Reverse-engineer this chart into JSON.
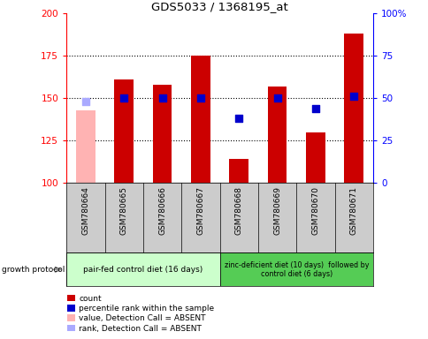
{
  "title": "GDS5033 / 1368195_at",
  "samples": [
    "GSM780664",
    "GSM780665",
    "GSM780666",
    "GSM780667",
    "GSM780668",
    "GSM780669",
    "GSM780670",
    "GSM780671"
  ],
  "count_values": [
    143,
    161,
    158,
    175,
    114,
    157,
    130,
    188
  ],
  "count_absent": [
    true,
    false,
    false,
    false,
    false,
    false,
    false,
    false
  ],
  "percentile_values": [
    48,
    50,
    50,
    50,
    38,
    50,
    44,
    51
  ],
  "percentile_absent": [
    true,
    false,
    false,
    false,
    false,
    false,
    false,
    false
  ],
  "ylim_left": [
    100,
    200
  ],
  "ylim_right": [
    0,
    100
  ],
  "yticks_left": [
    100,
    125,
    150,
    175,
    200
  ],
  "yticks_right": [
    0,
    25,
    50,
    75,
    100
  ],
  "group1_label": "pair-fed control diet (16 days)",
  "group2_label": "zinc-deficient diet (10 days)  followed by\ncontrol diet (6 days)",
  "group1_samples": 4,
  "group2_samples": 4,
  "bar_color_normal": "#cc0000",
  "bar_color_absent": "#ffb3b3",
  "dot_color_normal": "#0000cc",
  "dot_color_absent": "#aaaaff",
  "group1_bg": "#ccffcc",
  "group2_bg": "#55cc55",
  "sample_bg": "#cccccc",
  "legend_items": [
    {
      "color": "#cc0000",
      "label": "count"
    },
    {
      "color": "#0000cc",
      "label": "percentile rank within the sample"
    },
    {
      "color": "#ffb3b3",
      "label": "value, Detection Call = ABSENT"
    },
    {
      "color": "#aaaaff",
      "label": "rank, Detection Call = ABSENT"
    }
  ],
  "bar_width": 0.5,
  "dot_size": 40,
  "growth_protocol_label": "growth protocol"
}
